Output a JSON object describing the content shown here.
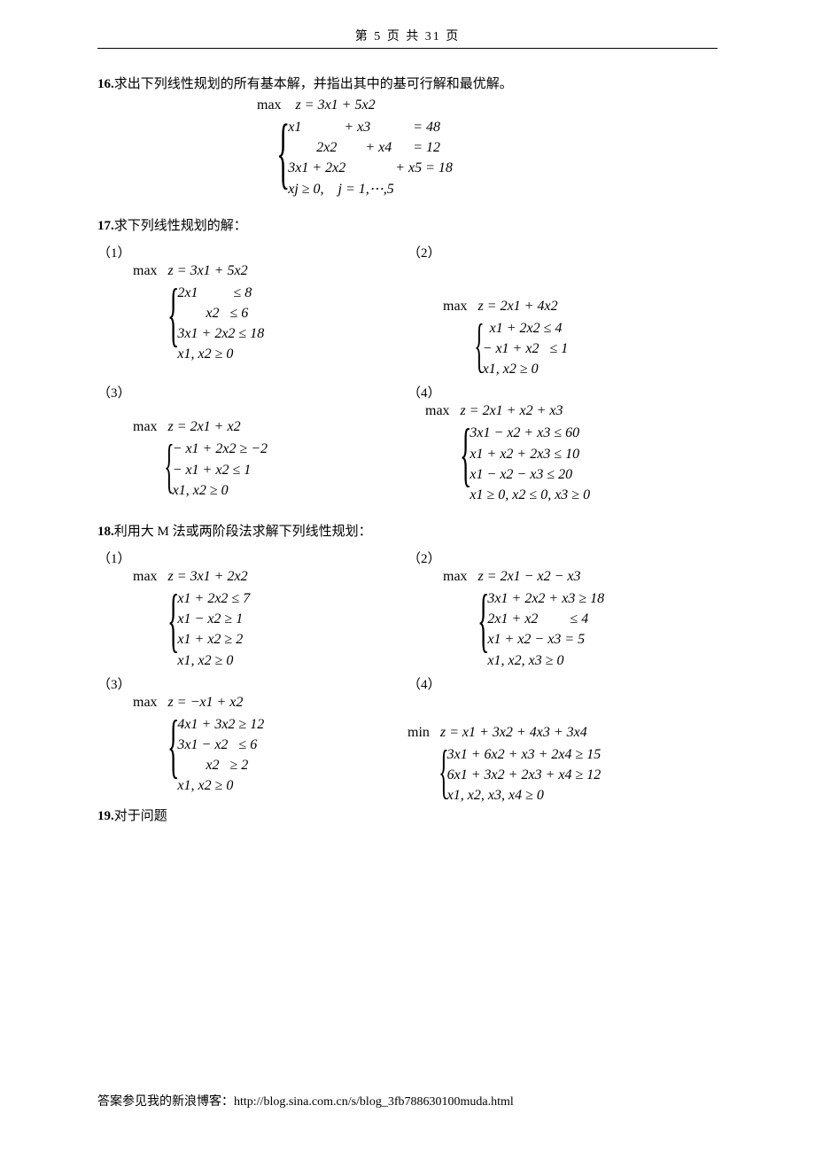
{
  "header": {
    "text": "第 5 页 共 31 页"
  },
  "footer": {
    "text": "答案参见我的新浪博客：http://blog.sina.com.cn/s/blog_3fb788630100muda.html"
  },
  "p16": {
    "num": "16.",
    "title": "求出下列线性规划的所有基本解，并指出其中的基可行解和最优解。",
    "obj_prefix": "max",
    "obj": "z = 3x₁ + 5x₂",
    "constraints": [
      "x₁            + x₃            = 48",
      "        2x₂        + x₄      = 12",
      "3x₁ + 2x₂              + x₅ = 18",
      "xⱼ ≥ 0,    j = 1,⋯,5"
    ]
  },
  "p17": {
    "num": "17.",
    "title": "求下列线性规划的解：",
    "sub1": {
      "label": "（1）",
      "obj_prefix": "max",
      "obj": "z = 3x₁ + 5x₂",
      "constraints": [
        "2x₁          ≤ 8",
        "        x₂   ≤ 6",
        "3x₁ + 2x₂ ≤ 18",
        "x₁, x₂ ≥ 0"
      ]
    },
    "sub2": {
      "label": "（2）",
      "obj_prefix": "max",
      "obj": "z = 2x₁ + 4x₂",
      "constraints": [
        "  x₁ + 2x₂ ≤ 4",
        "− x₁ + x₂   ≤ 1",
        "x₁, x₂ ≥ 0"
      ]
    },
    "sub3": {
      "label": "（3）",
      "obj_prefix": "max",
      "obj": "z = 2x₁ + x₂",
      "constraints": [
        "− x₁ + 2x₂ ≥ −2",
        "− x₁ + x₂ ≤ 1",
        "x₁, x₂ ≥ 0"
      ]
    },
    "sub4": {
      "label": "（4）",
      "obj_prefix": "max",
      "obj": "z = 2x₁ + x₂ + x₃",
      "constraints": [
        "3x₁ − x₂ + x₃ ≤ 60",
        "x₁ + x₂ + 2x₃ ≤ 10",
        "x₁ − x₂ − x₃ ≤ 20",
        "x₁ ≥ 0, x₂ ≤ 0, x₃ ≥ 0"
      ]
    }
  },
  "p18": {
    "num": "18.",
    "title": "利用大 M 法或两阶段法求解下列线性规划：",
    "sub1": {
      "label": "（1）",
      "obj_prefix": "max",
      "obj": "z = 3x₁ + 2x₂",
      "constraints": [
        "x₁ + 2x₂ ≤ 7",
        "x₁ − x₂ ≥ 1",
        "x₁ + x₂ ≥ 2",
        "x₁, x₂ ≥ 0"
      ]
    },
    "sub2": {
      "label": "（2）",
      "obj_prefix": "max",
      "obj": "z = 2x₁ − x₂ − x₃",
      "constraints": [
        "3x₁ + 2x₂ + x₃ ≥ 18",
        "2x₁ + x₂         ≤ 4",
        "x₁ + x₂ − x₃ = 5",
        "x₁, x₂, x₃ ≥ 0"
      ]
    },
    "sub3": {
      "label": "（3）",
      "obj_prefix": "max",
      "obj": "z = −x₁ + x₂",
      "constraints": [
        "4x₁ + 3x₂ ≥ 12",
        "3x₁ − x₂   ≤ 6",
        "        x₂   ≥ 2",
        "x₁, x₂ ≥ 0"
      ]
    },
    "sub4": {
      "label": "（4）",
      "obj_prefix": "min",
      "obj": "z = x₁ + 3x₂ + 4x₃ + 3x₄",
      "constraints": [
        "3x₁ + 6x₂ + x₃ + 2x₄ ≥ 15",
        "6x₁ + 3x₂ + 2x₃ + x₄ ≥ 12",
        "x₁, x₂, x₃, x₄ ≥ 0"
      ]
    }
  },
  "p19": {
    "num": "19.",
    "title": "对于问题"
  }
}
